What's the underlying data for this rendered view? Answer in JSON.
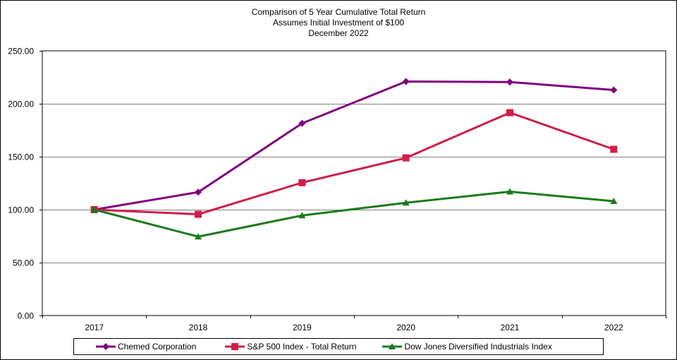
{
  "title_lines": [
    "Comparison  of 5 Year Cumulative  Total Return",
    "Assumes Initial Investment  of $100",
    "December  2022"
  ],
  "chart_data": {
    "type": "line",
    "x": [
      "2017",
      "2018",
      "2019",
      "2020",
      "2021",
      "2022"
    ],
    "ylim": [
      0,
      250
    ],
    "yticks": [
      "0.00",
      "50.00",
      "100.00",
      "150.00",
      "200.00",
      "250.00"
    ],
    "grid": true,
    "legend_position": "bottom",
    "series": [
      {
        "name": "Chemed Corporation",
        "values": [
          100,
          116.5,
          181.5,
          221.0,
          220.5,
          213.0
        ],
        "color": "#800080",
        "marker": "diamond"
      },
      {
        "name": "S&P 500 Index - Total Return",
        "values": [
          100,
          95.6,
          125.5,
          148.9,
          191.6,
          157.0
        ],
        "color": "#d01c48",
        "marker": "square"
      },
      {
        "name": "Dow Jones Diversified Industrials Index",
        "values": [
          100,
          74.5,
          94.5,
          106.5,
          117.0,
          108.0
        ],
        "color": "#1a7a1a",
        "marker": "triangle"
      }
    ]
  }
}
